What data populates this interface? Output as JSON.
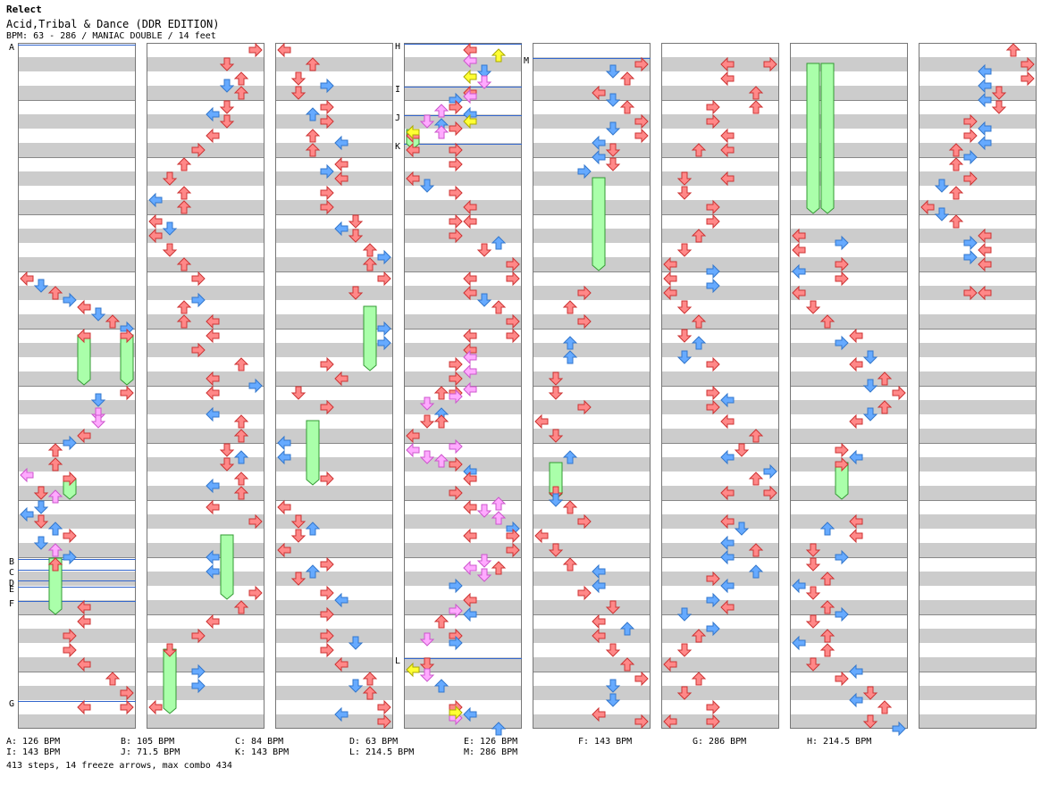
{
  "header": {
    "title": "Relect",
    "song": "Acid,Tribal & Dance (DDR EDITION)",
    "info": "BPM: 63 - 286 / MANIAC DOUBLE / 14 feet"
  },
  "markers": [
    "A",
    "B",
    "C",
    "D",
    "E",
    "F",
    "G",
    "H",
    "I",
    "J",
    "K",
    "L",
    "M"
  ],
  "bpm_legend": [
    "A: 126 BPM",
    "B: 105 BPM",
    "C: 84 BPM",
    "D: 63 BPM",
    "E: 126 BPM",
    "F: 143 BPM",
    "G: 286 BPM",
    "H: 214.5 BPM",
    "I: 143 BPM",
    "J: 71.5 BPM",
    "K: 143 BPM",
    "L: 214.5 BPM",
    "M: 286 BPM"
  ],
  "summary": "413 steps, 14 freeze arrows, max combo 434",
  "colors": {
    "stripe": "#cccccc",
    "measure_line": "#888888",
    "bpm_line": "#3366cc",
    "arrow_red": "#ff8888",
    "arrow_blue": "#66aaff",
    "arrow_pink": "#ffaaff",
    "arrow_yellow": "#ffff33",
    "freeze": "#aaffaa"
  }
}
